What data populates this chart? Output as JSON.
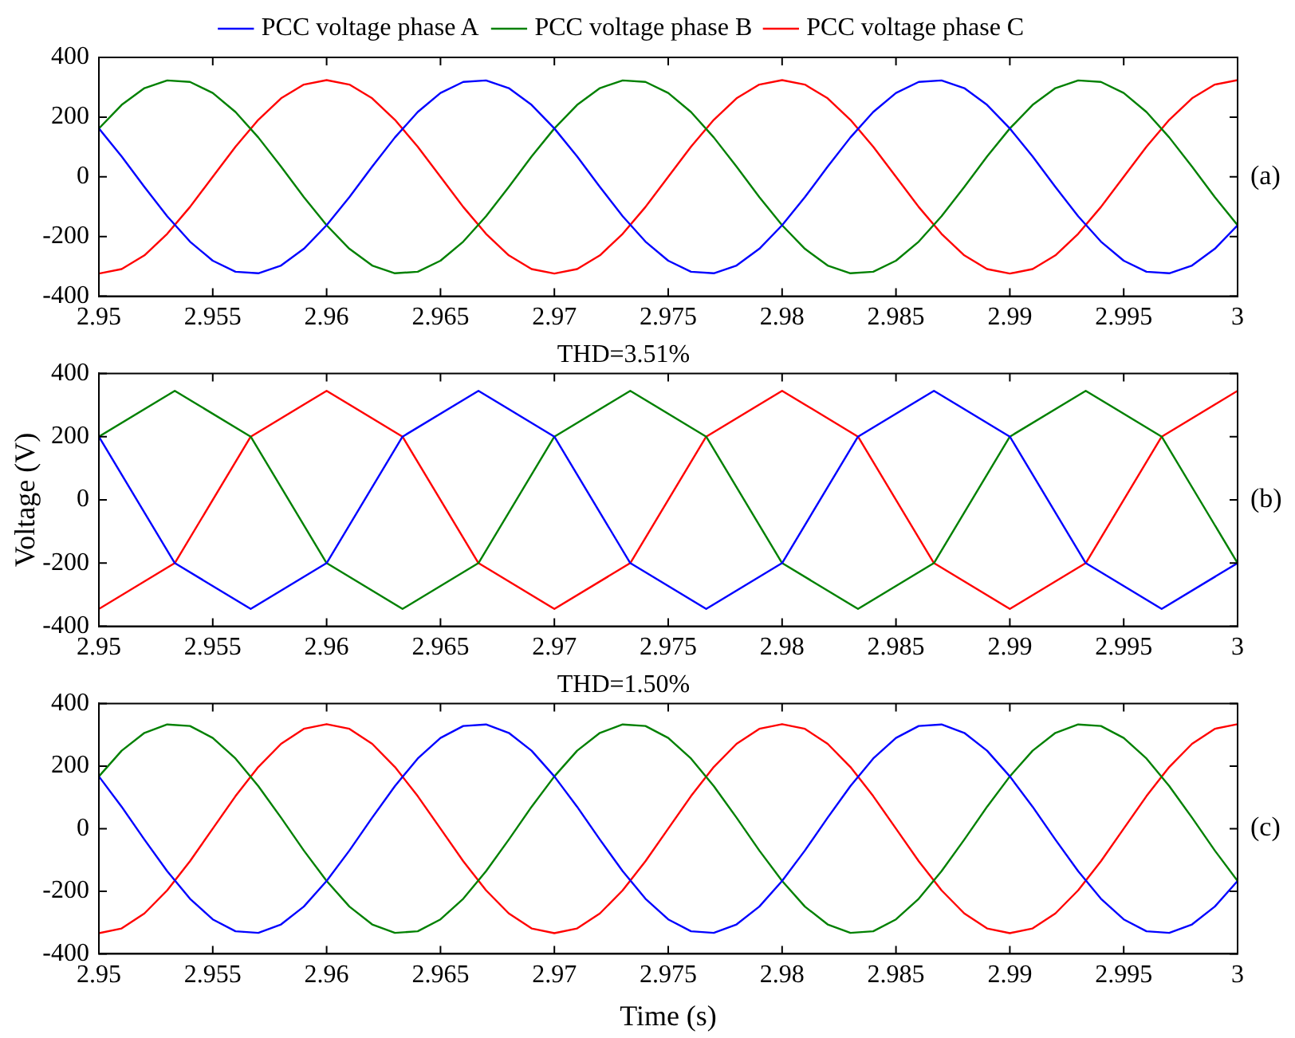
{
  "chart_data": [
    {
      "type": "line",
      "legend": "top",
      "annotations": [
        "(a)"
      ],
      "xlim": [
        2.95,
        3
      ],
      "ylim": [
        -400,
        400
      ],
      "xticks": [
        2.95,
        2.955,
        2.96,
        2.965,
        2.97,
        2.975,
        2.98,
        2.985,
        2.99,
        2.995,
        3
      ],
      "yticks": [
        -400,
        -200,
        0,
        200,
        400
      ],
      "x": [
        2.95,
        2.951,
        2.952,
        2.953,
        2.954,
        2.955,
        2.956,
        2.957,
        2.958,
        2.959,
        2.96,
        2.961,
        2.962,
        2.963,
        2.964,
        2.965,
        2.966,
        2.967,
        2.968,
        2.969,
        2.97,
        2.971,
        2.972,
        2.973,
        2.974,
        2.975,
        2.976,
        2.977,
        2.978,
        2.979,
        2.98,
        2.981,
        2.982,
        2.983,
        2.984,
        2.985,
        2.986,
        2.987,
        2.988,
        2.989,
        2.99,
        2.991,
        2.992,
        2.993,
        2.994,
        2.995,
        2.996,
        2.997,
        2.998,
        2.999,
        3
      ],
      "series": [
        {
          "name": "PCC voltage phase A",
          "color": "#0000ff",
          "values": [
            162,
            68,
            -34,
            -132,
            -217,
            -281,
            -318,
            -323,
            -297,
            -241,
            -162,
            -68,
            34,
            132,
            217,
            281,
            318,
            323,
            297,
            241,
            162,
            68,
            -34,
            -132,
            -217,
            -281,
            -318,
            -323,
            -297,
            -241,
            -162,
            -68,
            34,
            132,
            217,
            281,
            318,
            323,
            297,
            241,
            162,
            68,
            -34,
            -132,
            -217,
            -281,
            -318,
            -323,
            -297,
            -241,
            -162
          ]
        },
        {
          "name": "PCC voltage phase B",
          "color": "#008000",
          "values": [
            162,
            241,
            297,
            323,
            318,
            281,
            217,
            132,
            34,
            -68,
            -162,
            -241,
            -297,
            -323,
            -318,
            -281,
            -217,
            -132,
            -34,
            68,
            162,
            241,
            297,
            323,
            318,
            281,
            217,
            132,
            34,
            -68,
            -162,
            -241,
            -297,
            -323,
            -318,
            -281,
            -217,
            -132,
            -34,
            68,
            162,
            241,
            297,
            323,
            318,
            281,
            217,
            132,
            34,
            -68,
            -162
          ]
        },
        {
          "name": "PCC voltage phase C",
          "color": "#ff0000",
          "values": [
            -324,
            -309,
            -263,
            -191,
            -101,
            0,
            101,
            191,
            263,
            309,
            324,
            309,
            263,
            191,
            101,
            0,
            -101,
            -191,
            -263,
            -309,
            -324,
            -309,
            -263,
            -191,
            -101,
            0,
            101,
            191,
            263,
            309,
            324,
            309,
            263,
            191,
            101,
            0,
            -101,
            -191,
            -263,
            -309,
            -324,
            -309,
            -263,
            -191,
            -101,
            0,
            101,
            191,
            263,
            309,
            324
          ]
        }
      ]
    },
    {
      "type": "line",
      "title": "THD=3.51%",
      "ylabel": "Voltage (V)",
      "annotations": [
        "(b)"
      ],
      "xlim": [
        2.95,
        3
      ],
      "ylim": [
        -400,
        400
      ],
      "xticks": [
        2.95,
        2.955,
        2.96,
        2.965,
        2.97,
        2.975,
        2.98,
        2.985,
        2.99,
        2.995,
        3
      ],
      "yticks": [
        -400,
        -200,
        0,
        200,
        400
      ],
      "x": [
        2.95,
        2.953333,
        2.956667,
        2.96,
        2.963333,
        2.966667,
        2.97,
        2.973333,
        2.976667,
        2.98,
        2.983333,
        2.986667,
        2.99,
        2.993333,
        2.996667,
        3
      ],
      "series": [
        {
          "color": "#0000ff",
          "values": [
            200,
            -200,
            -345,
            -200,
            200,
            345,
            200,
            -200,
            -345,
            -200,
            200,
            345,
            200,
            -200,
            -345,
            -200
          ]
        },
        {
          "color": "#008000",
          "values": [
            200,
            345,
            200,
            -200,
            -345,
            -200,
            200,
            345,
            200,
            -200,
            -345,
            -200,
            200,
            345,
            200,
            -200
          ]
        },
        {
          "color": "#ff0000",
          "values": [
            -345,
            -200,
            200,
            345,
            200,
            -200,
            -345,
            -200,
            200,
            345,
            200,
            -200,
            -345,
            -200,
            200,
            345
          ]
        }
      ]
    },
    {
      "type": "line",
      "title": "THD=1.50%",
      "xlabel": "Time (s)",
      "annotations": [
        "(c)"
      ],
      "xlim": [
        2.95,
        3
      ],
      "ylim": [
        -400,
        400
      ],
      "xticks": [
        2.95,
        2.955,
        2.96,
        2.965,
        2.97,
        2.975,
        2.98,
        2.985,
        2.99,
        2.995,
        3
      ],
      "yticks": [
        -400,
        -200,
        0,
        200,
        400
      ],
      "x": [
        2.95,
        2.951,
        2.952,
        2.953,
        2.954,
        2.955,
        2.956,
        2.957,
        2.958,
        2.959,
        2.96,
        2.961,
        2.962,
        2.963,
        2.964,
        2.965,
        2.966,
        2.967,
        2.968,
        2.969,
        2.97,
        2.971,
        2.972,
        2.973,
        2.974,
        2.975,
        2.976,
        2.977,
        2.978,
        2.979,
        2.98,
        2.981,
        2.982,
        2.983,
        2.984,
        2.985,
        2.986,
        2.987,
        2.988,
        2.989,
        2.99,
        2.991,
        2.992,
        2.993,
        2.994,
        2.995,
        2.996,
        2.997,
        2.998,
        2.999,
        3
      ],
      "series": [
        {
          "color": "#0000ff",
          "values": [
            167,
            70,
            -35,
            -136,
            -224,
            -290,
            -328,
            -333,
            -306,
            -249,
            -167,
            -70,
            35,
            136,
            224,
            290,
            328,
            333,
            306,
            249,
            167,
            70,
            -35,
            -136,
            -224,
            -290,
            -328,
            -333,
            -306,
            -249,
            -167,
            -70,
            35,
            136,
            224,
            290,
            328,
            333,
            306,
            249,
            167,
            70,
            -35,
            -136,
            -224,
            -290,
            -328,
            -333,
            -306,
            -249,
            -167
          ]
        },
        {
          "color": "#008000",
          "values": [
            167,
            249,
            306,
            333,
            328,
            290,
            224,
            136,
            35,
            -70,
            -167,
            -249,
            -306,
            -333,
            -328,
            -290,
            -224,
            -136,
            -35,
            70,
            167,
            249,
            306,
            333,
            328,
            290,
            224,
            136,
            35,
            -70,
            -167,
            -249,
            -306,
            -333,
            -328,
            -290,
            -224,
            -136,
            -35,
            70,
            167,
            249,
            306,
            333,
            328,
            290,
            224,
            136,
            35,
            -70,
            -167
          ]
        },
        {
          "color": "#ff0000",
          "values": [
            -334,
            -319,
            -271,
            -197,
            -104,
            0,
            104,
            197,
            271,
            319,
            334,
            319,
            271,
            197,
            104,
            0,
            -104,
            -197,
            -271,
            -319,
            -334,
            -319,
            -271,
            -197,
            -104,
            0,
            104,
            197,
            271,
            319,
            334,
            319,
            271,
            197,
            104,
            0,
            -104,
            -197,
            -271,
            -319,
            -334,
            -319,
            -271,
            -197,
            -104,
            0,
            104,
            197,
            271,
            319,
            334
          ]
        }
      ]
    }
  ]
}
